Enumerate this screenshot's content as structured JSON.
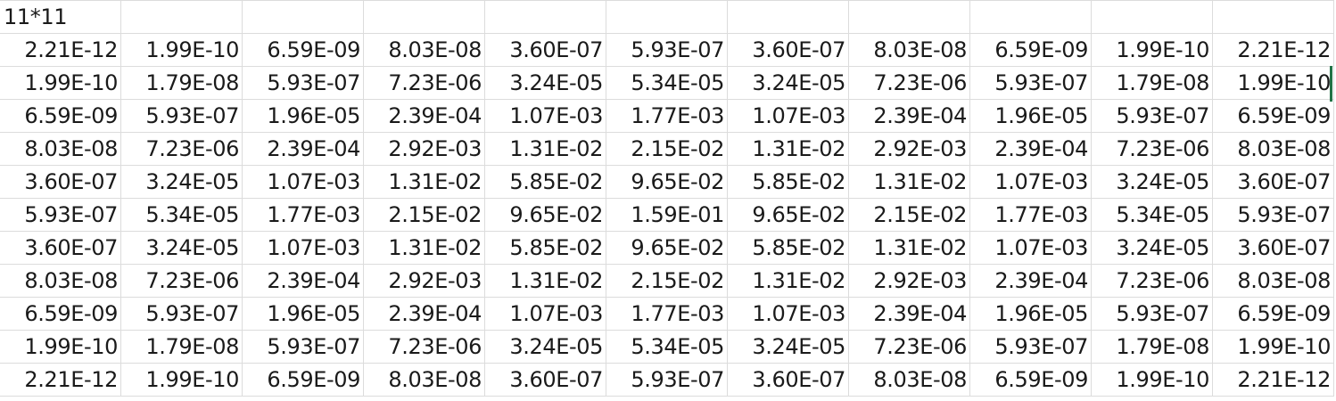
{
  "sheet": {
    "title_cell": "11*11",
    "rows": [
      [
        "2.21E-12",
        "1.99E-10",
        "6.59E-09",
        "8.03E-08",
        "3.60E-07",
        "5.93E-07",
        "3.60E-07",
        "8.03E-08",
        "6.59E-09",
        "1.99E-10",
        "2.21E-12"
      ],
      [
        "1.99E-10",
        "1.79E-08",
        "5.93E-07",
        "7.23E-06",
        "3.24E-05",
        "5.34E-05",
        "3.24E-05",
        "7.23E-06",
        "5.93E-07",
        "1.79E-08",
        "1.99E-10"
      ],
      [
        "6.59E-09",
        "5.93E-07",
        "1.96E-05",
        "2.39E-04",
        "1.07E-03",
        "1.77E-03",
        "1.07E-03",
        "2.39E-04",
        "1.96E-05",
        "5.93E-07",
        "6.59E-09"
      ],
      [
        "8.03E-08",
        "7.23E-06",
        "2.39E-04",
        "2.92E-03",
        "1.31E-02",
        "2.15E-02",
        "1.31E-02",
        "2.92E-03",
        "2.39E-04",
        "7.23E-06",
        "8.03E-08"
      ],
      [
        "3.60E-07",
        "3.24E-05",
        "1.07E-03",
        "1.31E-02",
        "5.85E-02",
        "9.65E-02",
        "5.85E-02",
        "1.31E-02",
        "1.07E-03",
        "3.24E-05",
        "3.60E-07"
      ],
      [
        "5.93E-07",
        "5.34E-05",
        "1.77E-03",
        "2.15E-02",
        "9.65E-02",
        "1.59E-01",
        "9.65E-02",
        "2.15E-02",
        "1.77E-03",
        "5.34E-05",
        "5.93E-07"
      ],
      [
        "3.60E-07",
        "3.24E-05",
        "1.07E-03",
        "1.31E-02",
        "5.85E-02",
        "9.65E-02",
        "5.85E-02",
        "1.31E-02",
        "1.07E-03",
        "3.24E-05",
        "3.60E-07"
      ],
      [
        "8.03E-08",
        "7.23E-06",
        "2.39E-04",
        "2.92E-03",
        "1.31E-02",
        "2.15E-02",
        "1.31E-02",
        "2.92E-03",
        "2.39E-04",
        "7.23E-06",
        "8.03E-08"
      ],
      [
        "6.59E-09",
        "5.93E-07",
        "1.96E-05",
        "2.39E-04",
        "1.07E-03",
        "1.77E-03",
        "1.07E-03",
        "2.39E-04",
        "1.96E-05",
        "5.93E-07",
        "6.59E-09"
      ],
      [
        "1.99E-10",
        "1.79E-08",
        "5.93E-07",
        "7.23E-06",
        "3.24E-05",
        "5.34E-05",
        "3.24E-05",
        "7.23E-06",
        "5.93E-07",
        "1.79E-08",
        "1.99E-10"
      ],
      [
        "2.21E-12",
        "1.99E-10",
        "6.59E-09",
        "8.03E-08",
        "3.60E-07",
        "5.93E-07",
        "3.60E-07",
        "8.03E-08",
        "6.59E-09",
        "1.99E-10",
        "2.21E-12"
      ]
    ]
  },
  "colors": {
    "gridline": "#dcdcdc",
    "text": "#1a1a1a",
    "active_cell_border": "#217346"
  }
}
